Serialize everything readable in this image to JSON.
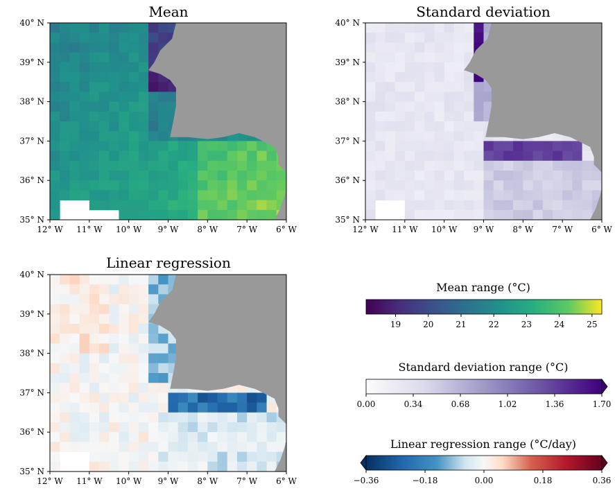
{
  "panels": [
    {
      "title": "Mean",
      "colormap": "viridis"
    },
    {
      "title": "Standard deviation",
      "colormap": "purples"
    },
    {
      "title": "Linear regression",
      "colormap": "rdbu_r"
    }
  ],
  "axes": {
    "lat_ticks": [
      "40° N",
      "39° N",
      "38° N",
      "37° N",
      "36° N",
      "35° N"
    ],
    "lon_ticks": [
      "12° W",
      "11° W",
      "10° W",
      "9° W",
      "8° W",
      "7° W",
      "6° W"
    ]
  },
  "colorbars": [
    {
      "label": "Mean range (°C)",
      "ticks": [
        "19",
        "20",
        "21",
        "22",
        "23",
        "24",
        "25"
      ],
      "min": 18.1,
      "max": 25.3,
      "extend": "none"
    },
    {
      "label": "Standard deviation range (°C)",
      "ticks": [
        "0.00",
        "0.34",
        "0.68",
        "1.02",
        "1.36",
        "1.70"
      ],
      "min": 0,
      "max": 1.7,
      "extend": "max"
    },
    {
      "label": "Linear regression range (°C/day)",
      "ticks": [
        "−0.36",
        "−0.18",
        "0.00",
        "0.18",
        "0.36"
      ],
      "min": -0.36,
      "max": 0.36,
      "extend": "both"
    }
  ],
  "colors": {
    "land": "#999999",
    "nodata": "#ffffff"
  }
}
